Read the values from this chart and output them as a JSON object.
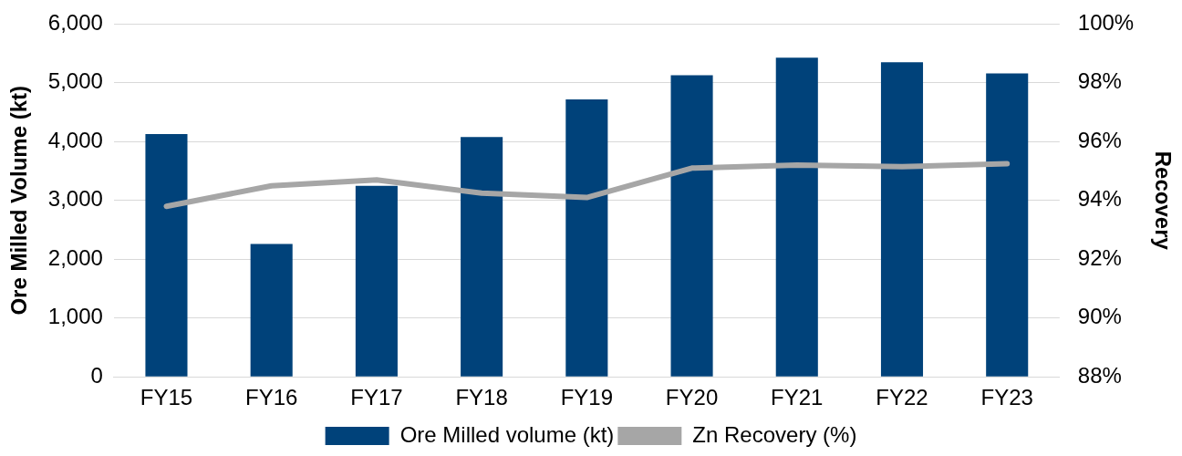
{
  "chart_data": {
    "type": "bar",
    "ylabel": "Ore Milled Volume (kt)",
    "y2label": "Recovery",
    "categories": [
      "FY15",
      "FY16",
      "FY17",
      "FY18",
      "FY19",
      "FY20",
      "FY21",
      "FY22",
      "FY23"
    ],
    "series": [
      {
        "name": "Ore Milled volume (kt)",
        "color": "#00427a",
        "values": [
          4130,
          2260,
          3250,
          4080,
          4720,
          5130,
          5430,
          5350,
          5160
        ]
      },
      {
        "name": "Zn Recovery (%)",
        "type": "line",
        "axis": "y2",
        "color": "#a6a6a6",
        "values": [
          93.8,
          94.5,
          94.7,
          94.25,
          94.1,
          95.1,
          95.2,
          95.15,
          95.25
        ]
      }
    ],
    "ylim": [
      0,
      6000
    ],
    "yticks": [
      {
        "value": 0,
        "label": "0"
      },
      {
        "value": 1000,
        "label": "1,000"
      },
      {
        "value": 2000,
        "label": "2,000"
      },
      {
        "value": 3000,
        "label": "3,000"
      },
      {
        "value": 4000,
        "label": "4,000"
      },
      {
        "value": 5000,
        "label": "5,000"
      },
      {
        "value": 6000,
        "label": "6,000"
      }
    ],
    "y2lim": [
      88,
      100
    ],
    "y2ticks": [
      {
        "value": 88,
        "label": "88%"
      },
      {
        "value": 90,
        "label": "90%"
      },
      {
        "value": 92,
        "label": "92%"
      },
      {
        "value": 94,
        "label": "94%"
      },
      {
        "value": 96,
        "label": "96%"
      },
      {
        "value": 98,
        "label": "98%"
      },
      {
        "value": 100,
        "label": "100%"
      }
    ],
    "grid": "y",
    "legend": "bottom",
    "marker": "none",
    "line_style": "solid"
  }
}
